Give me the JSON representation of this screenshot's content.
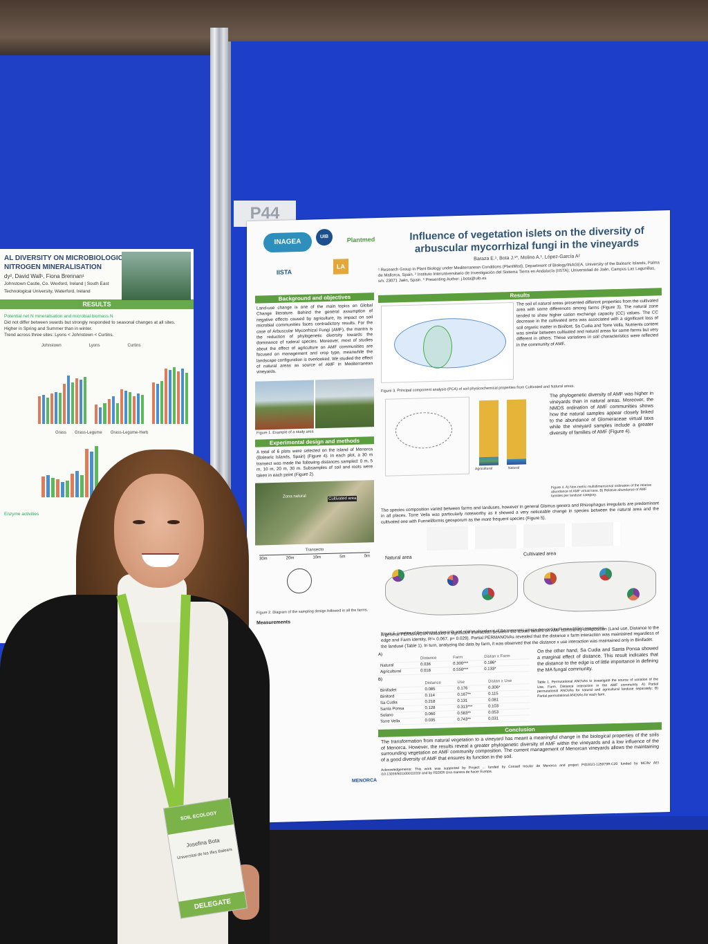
{
  "booth": {
    "tag": "P44"
  },
  "left_poster": {
    "title_line1": "AL DIVERSITY ON MICROBIOLOGICAL",
    "title_line2": "NITROGEN MINERALISATION",
    "authors": "dy², David Wall¹, Fiona Brennan¹",
    "affiliations": "Johnstown Castle, Co. Wexford, Ireland | South East Technological University, Waterford, Ireland",
    "results_header": "RESULTS",
    "subhead": "Potential net N mineralisation and microbial biomass N",
    "bullets": [
      "Did not differ between swards but strongly responded to seasonal changes at all sites.",
      "Higher in Spring and Summer than in winter.",
      "Trend across three sites: Lyons < Johnstown < Curtins."
    ],
    "legend": [
      "Grass",
      "Grass-Legume",
      "Grass-Legume-Herb"
    ],
    "sites": [
      "Johnstown",
      "Lyons",
      "Curtins"
    ],
    "section_b": "Enzyme activities"
  },
  "poster": {
    "title_line1": "Influence of vegetation islets on the diversity of",
    "title_line2": "arbuscular mycorrhizal fungi in the vineyards",
    "authors": "Baraza E.¹, Bota J.¹*, Molino A.¹, López-García A²",
    "affiliations": "¹ Research Group in Plant Biology under Mediterranean Conditions (PlantMed), Department of Biology/INAGEA, University of the Balearic Islands, Palma de Mallorca, Spain. ² Instituto Interuniversitario de Investigación del Sistema Tierra en Andalucía (IISTA); Universidad de Jaén, Campus Las Lagunillas, s/n. 23071 Jaén, Spain. * Presenting Author: j.bota@uib.es",
    "logos": [
      "INAGEA",
      "UIB",
      "Plantmed",
      "IISTA",
      "LA"
    ],
    "sections": {
      "background": "Background and objectives",
      "design": "Experimental design and methods",
      "results": "Results",
      "conclusion": "Conclusion"
    },
    "background_text": "Land-use change is one of the main topics on Global Change literature. Behind the general assumption of negative effects caused by agriculture, its impact on soil microbial communities faces contradictory results. For the case of Arbuscular Mycorrhizal Fungi (AMF), the mantra is the reduction of phylogenetic diversity towards the dominance of ruderal species. Moreover, most of studies about the effect of agriculture on AMF communities are focused on management and crop type, meanwhile the landscape configuration is overlooked. We studied the effect of natural areas as source of AMF in Mediterranean vineyards.",
    "figure1_caption": "Figure 1. Example of a study area",
    "design_text": "A total of 6 plots were selected on the island of Menorca (Balearic Islands, Spain) (Figure 4). In each plot, a 30 m transect was made the following distances sampled: 0 m, 5 m, 10 m, 20 m, 30 m. Subsamples of soil and roots were taken in each point (Figure 2).",
    "figure2_caption": "Figure 2. Diagram of the sampling design followed in all the farms.",
    "transect_label": "Transecto",
    "zone_natural": "Zona natural",
    "cultivated_label": "Cultivated area",
    "distances": [
      "30m",
      "20m",
      "10m",
      "5m",
      "0m"
    ],
    "measurements_head": "Measurements",
    "results_text1": "The soil of natural areas presented different properties from the cultivated area with some differences among farms (Figure 3). The natural zone tended to show higher cation exchange capacity (CC) values. The CC decrease in the cultivated area was associated with a significant loss of soil organic matter in Binifont, Sa Cudia and Torre Vella. Nutrients content was similar between cultivated and natural areas for some farms but very different in others. These variations in soil characteristics were reflected in the community of AMF.",
    "figure3_caption": "Figure 3. Principal component analysis (PCA) of soil physicochemical properties from Cultivated and Natural areas.",
    "results_text2": "The phylogenetic diversity of AMF was higher in vineyards than in natural areas. Moreover, the NMDS ordination of AMF communities shows how the natural samples appear closely linked to the abundance of Glomeraceae virtual taxa while the vineyard samples include a greater diversity of families of AMF (Figure 4).",
    "figure4_caption": "Figure 4. A) Non-metric multidimensional ordination of the relative abundance of AMF virtual taxa. B) Relative abundance of AMF families per landuse category.",
    "bar_labels": [
      "Agricultural",
      "Natural"
    ],
    "results_text3": "The species composition varied between farms and landuses, however in general Glomus genera and Rhizophagus irregularis are predominant in all places. Torre Vella was particularly noteworthy as it showed a very noticeable change in species between the natural area and the cultivated one with Funneliformis geosporum as the more frequent species (Figure 5).",
    "map_natural": "Natural area",
    "map_cultivated": "Cultivated area",
    "figure5_caption": "Figure 5. Location of the selected vineyards and relative abundance of the taxonomic groups detected by Illumina MiSeq sequencing.",
    "permanova_text": "A general PERMANOVA revealed a significant interaction between the tested factors on AMF community composition (Land use, Distance to the edge and Farm identity, R²= 0.067, p= 0.029). Partial PERMANOVAs revealed that the distance x farm interaction was maintained regardless of the landuse (Table 1). In turn, analyzing the data by farm, it was observed that the distance x use interaction was maintained only in Binifadet.",
    "table_a": {
      "label": "A)",
      "headers": [
        "",
        "Distance",
        "Farm",
        "Distan x Farm"
      ],
      "rows": [
        [
          "Natural",
          "0.036",
          "0.300***",
          "0.186*"
        ],
        [
          "Agricultural",
          "0.018",
          "0.550***",
          "0.133*"
        ]
      ]
    },
    "table_b": {
      "label": "B)",
      "headers": [
        "",
        "Distance",
        "Use",
        "Distan x Use"
      ],
      "rows": [
        [
          "Binifadet",
          "0.085",
          "0.176",
          "0.306*"
        ],
        [
          "Binitord",
          "0.114",
          "0.167**",
          "0.115"
        ],
        [
          "Sa Cudia",
          "0.218",
          "0.131",
          "0.081"
        ],
        [
          "Santa Ponsa",
          "0.128",
          "0.313***",
          "0.103"
        ],
        [
          "Solano",
          "0.060",
          "0.583**",
          "0.053"
        ],
        [
          "Torre Vella",
          "0.035",
          "0.743**",
          "0.031"
        ]
      ]
    },
    "side_text": "On the other hand, Sa Cudia and Santa Ponsa showed a marginal effect of distance. This result indicates that the distance to the edge is of little importance in defining the MA fungal community.",
    "table_caption": "Table 1. Permutational ANOVAs to investigate the source of variation of the Use, Farm, Distance interaction in the AMF community. A) Partial permutational ANOVAs for natural and agricultural landuse separately; B) Partial permutational ANOVAs for each farm.",
    "conclusion_text": "The transformation from natural vegetation to a vineyard has meant a meaningful change in the biological properties of the soils of Menorca. However, the results reveal a greater phylogenetic diversity of AMF within the vineyards and a low influence of the surrounding vegetation on AMF community composition. The current management of Menorcan vineyards allows the maintaining of a good diversity of AMF that ensures its function in the soil.",
    "ack": "Acknowledgements: This work was supported by Project ... funded by Consell Insular de Menorca and project PID2021-125979R-C20 funded by MCIN/ AEI /10.13039/501100011033/ and by FEDER Una manera de hacer Europa.",
    "footer_logos": [
      "MENORCA"
    ]
  },
  "badge": {
    "event": "SOIL ECOLOGY",
    "name": "Josefina Bota",
    "org": "Universitat de les Illes Balears",
    "role": "DELEGATE"
  },
  "colors": {
    "board": "#1c3ec9",
    "section_green": "#5c9e3e",
    "title_blue": "#2f5376",
    "lanyard": "#8cc63f",
    "jacket": "#151516"
  }
}
